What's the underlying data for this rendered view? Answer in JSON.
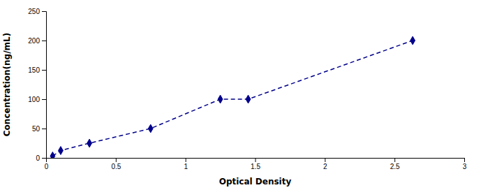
{
  "chart_data": {
    "type": "line",
    "x": [
      0.047,
      0.105,
      0.311,
      0.75,
      1.25,
      1.45,
      2.63
    ],
    "values": [
      3.13,
      12.5,
      25.0,
      50.0,
      100.0,
      100.0,
      200.0
    ],
    "color": "#00008B",
    "marker": "diamond",
    "line_style": "dashed",
    "xlabel": "Optical Density",
    "ylabel": "Concentration(ng/mL)",
    "xlim": [
      0,
      3
    ],
    "ylim": [
      0,
      250
    ],
    "xticks": [
      0,
      0.5,
      1,
      1.5,
      2,
      2.5,
      3
    ],
    "yticks": [
      0,
      50,
      100,
      150,
      200,
      250
    ],
    "grid": false
  }
}
